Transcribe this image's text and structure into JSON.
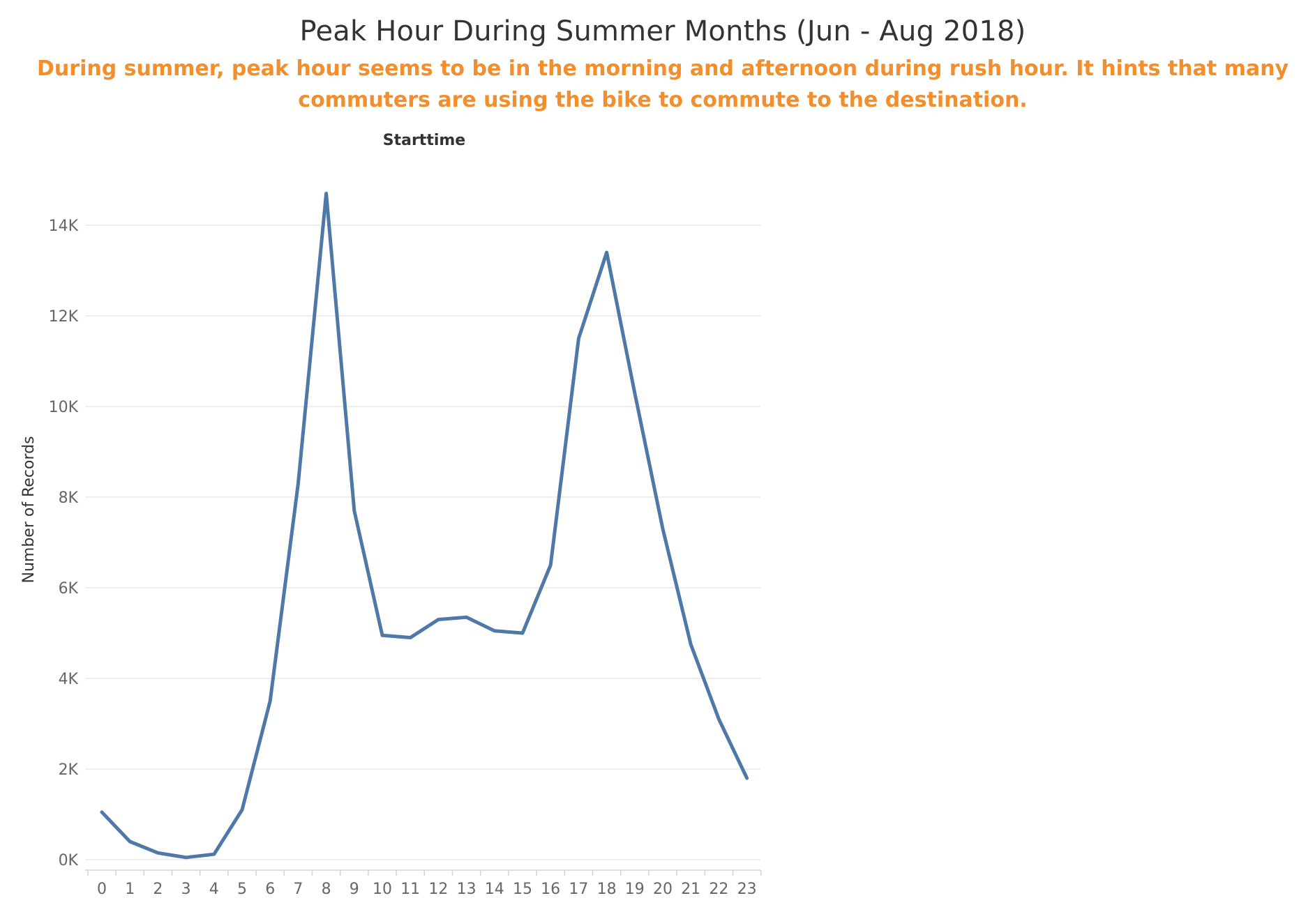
{
  "title": "Peak Hour During Summer Months (Jun - Aug 2018)",
  "subtitle": "During summer, peak hour seems to be in the morning and afternoon during rush hour. It hints that many commuters are using the bike to commute to the destination.",
  "colors": {
    "line": "#4e79a7",
    "subtitle": "#f28e2b",
    "gridline": "#e9e9e9"
  },
  "chart_data": {
    "type": "line",
    "title": "Peak Hour During Summer Months (Jun - Aug 2018)",
    "header": "Starttime",
    "ylabel": "Number of Records",
    "xlabel": "",
    "x": [
      "0",
      "1",
      "2",
      "3",
      "4",
      "5",
      "6",
      "7",
      "8",
      "9",
      "10",
      "11",
      "12",
      "13",
      "14",
      "15",
      "16",
      "17",
      "18",
      "19",
      "20",
      "21",
      "22",
      "23"
    ],
    "series": [
      {
        "name": "",
        "values": [
          1050,
          400,
          150,
          50,
          120,
          1100,
          3500,
          8300,
          14700,
          7700,
          4950,
          4900,
          5300,
          5350,
          5050,
          5000,
          6500,
          11500,
          13400,
          10300,
          7300,
          4750,
          3100,
          1800
        ]
      }
    ],
    "ylim": [
      -200,
      15500
    ],
    "yticks": [
      0,
      2000,
      4000,
      6000,
      8000,
      10000,
      12000,
      14000
    ],
    "ytick_labels": [
      "0K",
      "2K",
      "4K",
      "6K",
      "8K",
      "10K",
      "12K",
      "14K"
    ],
    "grid": true,
    "legend": "none"
  }
}
